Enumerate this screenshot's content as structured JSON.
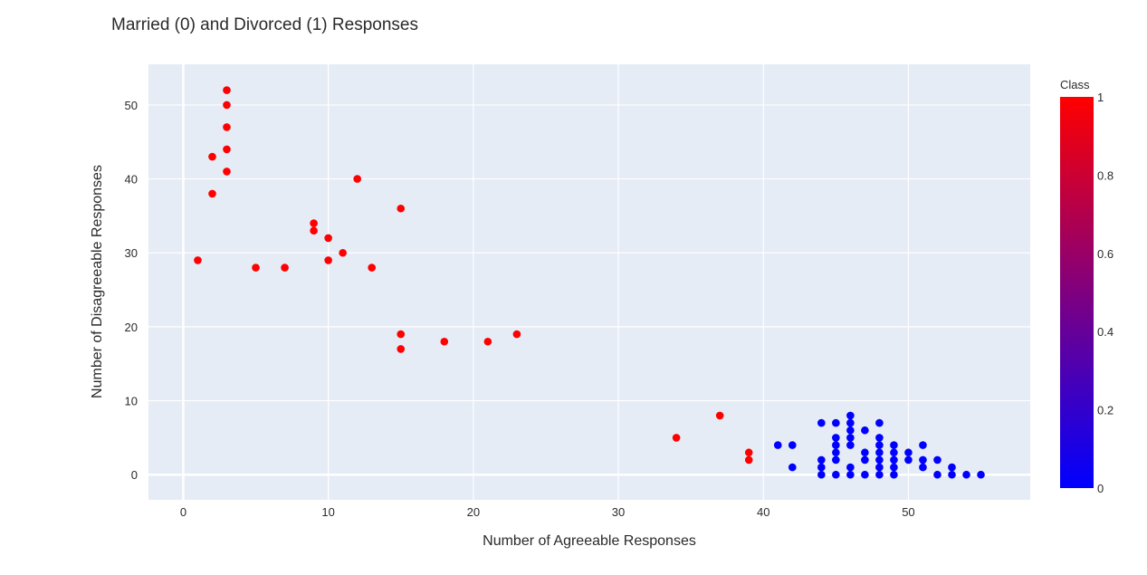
{
  "chart_data": {
    "type": "scatter",
    "title": "Married (0) and Divorced (1) Responses",
    "xlabel": "Number of Agreeable Responses",
    "ylabel": "Number of Disagreeable Responses",
    "xlim": [
      -2.4,
      58.4
    ],
    "ylim": [
      -3.4,
      55.5
    ],
    "xticks": [
      0,
      10,
      20,
      30,
      40,
      50
    ],
    "yticks": [
      0,
      10,
      20,
      30,
      40,
      50
    ],
    "grid": true,
    "colorbar": {
      "title": "Class",
      "range": [
        0,
        1
      ],
      "ticks": [
        0,
        0.2,
        0.4,
        0.6,
        0.8,
        1
      ],
      "tick_labels": [
        "0",
        "0.2",
        "0.4",
        "0.6",
        "0.8",
        "1"
      ],
      "colors": [
        "#0000ff",
        "#ff0000"
      ]
    },
    "colors": {
      "plot_bg": "#e5ecf6",
      "grid": "#ffffff"
    },
    "points": [
      {
        "x": 3,
        "y": 52,
        "c": 1
      },
      {
        "x": 3,
        "y": 50,
        "c": 1
      },
      {
        "x": 3,
        "y": 47,
        "c": 1
      },
      {
        "x": 3,
        "y": 44,
        "c": 1
      },
      {
        "x": 2,
        "y": 43,
        "c": 1
      },
      {
        "x": 3,
        "y": 41,
        "c": 1
      },
      {
        "x": 2,
        "y": 38,
        "c": 1
      },
      {
        "x": 12,
        "y": 40,
        "c": 1
      },
      {
        "x": 15,
        "y": 36,
        "c": 1
      },
      {
        "x": 9,
        "y": 34,
        "c": 1
      },
      {
        "x": 9,
        "y": 33,
        "c": 1
      },
      {
        "x": 10,
        "y": 32,
        "c": 1
      },
      {
        "x": 11,
        "y": 30,
        "c": 1
      },
      {
        "x": 10,
        "y": 29,
        "c": 1
      },
      {
        "x": 1,
        "y": 29,
        "c": 1
      },
      {
        "x": 5,
        "y": 28,
        "c": 1
      },
      {
        "x": 7,
        "y": 28,
        "c": 1
      },
      {
        "x": 13,
        "y": 28,
        "c": 1
      },
      {
        "x": 15,
        "y": 19,
        "c": 1
      },
      {
        "x": 23,
        "y": 19,
        "c": 1
      },
      {
        "x": 18,
        "y": 18,
        "c": 1
      },
      {
        "x": 21,
        "y": 18,
        "c": 1
      },
      {
        "x": 15,
        "y": 17,
        "c": 1
      },
      {
        "x": 37,
        "y": 8,
        "c": 1
      },
      {
        "x": 34,
        "y": 5,
        "c": 1
      },
      {
        "x": 39,
        "y": 3,
        "c": 1
      },
      {
        "x": 39,
        "y": 2,
        "c": 1
      },
      {
        "x": 41,
        "y": 4,
        "c": 0
      },
      {
        "x": 42,
        "y": 4,
        "c": 0
      },
      {
        "x": 42,
        "y": 1,
        "c": 0
      },
      {
        "x": 44,
        "y": 7,
        "c": 0
      },
      {
        "x": 44,
        "y": 2,
        "c": 0
      },
      {
        "x": 44,
        "y": 1,
        "c": 0
      },
      {
        "x": 44,
        "y": 0,
        "c": 0
      },
      {
        "x": 45,
        "y": 7,
        "c": 0
      },
      {
        "x": 45,
        "y": 5,
        "c": 0
      },
      {
        "x": 45,
        "y": 4,
        "c": 0
      },
      {
        "x": 45,
        "y": 3,
        "c": 0
      },
      {
        "x": 45,
        "y": 2,
        "c": 0
      },
      {
        "x": 45,
        "y": 0,
        "c": 0
      },
      {
        "x": 46,
        "y": 8,
        "c": 0
      },
      {
        "x": 46,
        "y": 7,
        "c": 0
      },
      {
        "x": 46,
        "y": 6,
        "c": 0
      },
      {
        "x": 46,
        "y": 5,
        "c": 0
      },
      {
        "x": 46,
        "y": 4,
        "c": 0
      },
      {
        "x": 46,
        "y": 1,
        "c": 0
      },
      {
        "x": 46,
        "y": 0,
        "c": 0
      },
      {
        "x": 47,
        "y": 6,
        "c": 0
      },
      {
        "x": 47,
        "y": 3,
        "c": 0
      },
      {
        "x": 47,
        "y": 2,
        "c": 0
      },
      {
        "x": 47,
        "y": 0,
        "c": 0
      },
      {
        "x": 48,
        "y": 7,
        "c": 0
      },
      {
        "x": 48,
        "y": 5,
        "c": 0
      },
      {
        "x": 48,
        "y": 4,
        "c": 0
      },
      {
        "x": 48,
        "y": 3,
        "c": 0
      },
      {
        "x": 48,
        "y": 2,
        "c": 0
      },
      {
        "x": 48,
        "y": 1,
        "c": 0
      },
      {
        "x": 48,
        "y": 0,
        "c": 0
      },
      {
        "x": 49,
        "y": 4,
        "c": 0
      },
      {
        "x": 49,
        "y": 3,
        "c": 0
      },
      {
        "x": 49,
        "y": 2,
        "c": 0
      },
      {
        "x": 49,
        "y": 1,
        "c": 0
      },
      {
        "x": 49,
        "y": 0,
        "c": 0
      },
      {
        "x": 50,
        "y": 3,
        "c": 0
      },
      {
        "x": 50,
        "y": 2,
        "c": 0
      },
      {
        "x": 51,
        "y": 4,
        "c": 0
      },
      {
        "x": 51,
        "y": 2,
        "c": 0
      },
      {
        "x": 51,
        "y": 1,
        "c": 0
      },
      {
        "x": 52,
        "y": 2,
        "c": 0
      },
      {
        "x": 52,
        "y": 0,
        "c": 0
      },
      {
        "x": 53,
        "y": 1,
        "c": 0
      },
      {
        "x": 53,
        "y": 0,
        "c": 0
      },
      {
        "x": 54,
        "y": 0,
        "c": 0
      },
      {
        "x": 55,
        "y": 0,
        "c": 0
      }
    ]
  }
}
